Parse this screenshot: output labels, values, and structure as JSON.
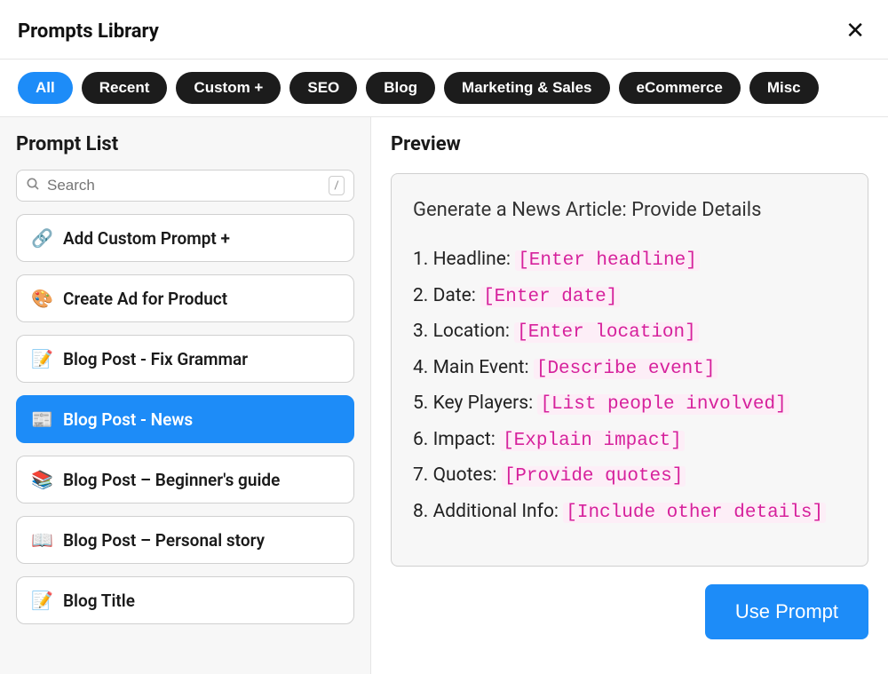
{
  "header": {
    "title": "Prompts Library"
  },
  "filters": [
    {
      "label": "All",
      "active": true
    },
    {
      "label": "Recent",
      "active": false
    },
    {
      "label": "Custom +",
      "active": false
    },
    {
      "label": "SEO",
      "active": false
    },
    {
      "label": "Blog",
      "active": false
    },
    {
      "label": "Marketing & Sales",
      "active": false
    },
    {
      "label": "eCommerce",
      "active": false
    },
    {
      "label": "Misc",
      "active": false
    }
  ],
  "sidebar": {
    "title": "Prompt List",
    "search_placeholder": "Search",
    "shortcut_key": "/",
    "items": [
      {
        "emoji": "🔗",
        "label": "Add Custom Prompt +",
        "selected": false
      },
      {
        "emoji": "🎨",
        "label": "Create Ad for Product",
        "selected": false
      },
      {
        "emoji": "📝",
        "label": "Blog Post - Fix Grammar",
        "selected": false
      },
      {
        "emoji": "📰",
        "label": "Blog Post - News",
        "selected": true
      },
      {
        "emoji": "📚",
        "label": "Blog Post – Beginner's guide",
        "selected": false
      },
      {
        "emoji": "📖",
        "label": "Blog Post – Personal story",
        "selected": false
      },
      {
        "emoji": "📝",
        "label": "Blog Title",
        "selected": false
      }
    ]
  },
  "preview": {
    "heading": "Preview",
    "title": "Generate a News Article: Provide Details",
    "lines": [
      {
        "n": "1.",
        "label": "Headline:",
        "ph": "[Enter headline]"
      },
      {
        "n": "2.",
        "label": "Date:",
        "ph": "[Enter date]"
      },
      {
        "n": "3.",
        "label": "Location:",
        "ph": "[Enter location]"
      },
      {
        "n": "4.",
        "label": "Main Event:",
        "ph": "[Describe event]"
      },
      {
        "n": "5.",
        "label": "Key Players:",
        "ph": "[List people involved]"
      },
      {
        "n": "6.",
        "label": "Impact:",
        "ph": "[Explain impact]"
      },
      {
        "n": "7.",
        "label": "Quotes:",
        "ph": "[Provide quotes]"
      },
      {
        "n": "8.",
        "label": "Additional Info:",
        "ph": "[Include other details]"
      }
    ],
    "use_button": "Use Prompt"
  },
  "colors": {
    "accent": "#1d8cf8",
    "pill_dark": "#1c1c1c",
    "placeholder_text": "#d6219c",
    "placeholder_bg": "#fdeef7",
    "panel_bg": "#f7f7f7",
    "border": "#d0d0d0"
  }
}
